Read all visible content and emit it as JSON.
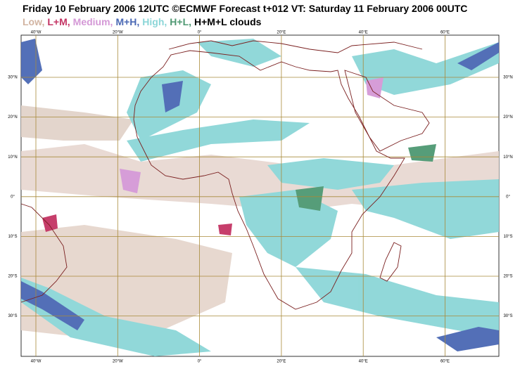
{
  "header": {
    "title": "Friday 10 February 2006 12UTC ©ECMWF Forecast t+012 VT: Saturday 11 February 2006 00UTC",
    "legend": [
      {
        "label": "Low,",
        "color": "#d2b4a2"
      },
      {
        "label": "L+M,",
        "color": "#c43464"
      },
      {
        "label": "Medium,",
        "color": "#d498d6"
      },
      {
        "label": "M+H,",
        "color": "#4a68b4"
      },
      {
        "label": "High,",
        "color": "#8cd6d8"
      },
      {
        "label": "H+L,",
        "color": "#4e9872"
      },
      {
        "label": "H+M+L clouds",
        "color": "#000000"
      }
    ]
  },
  "map": {
    "lon_labels": [
      "40°W",
      "20°W",
      "0°",
      "20°E",
      "40°E",
      "60°E"
    ],
    "lat_labels": [
      "30°N",
      "20°N",
      "10°N",
      "0°",
      "10°S",
      "20°S",
      "30°S"
    ]
  }
}
